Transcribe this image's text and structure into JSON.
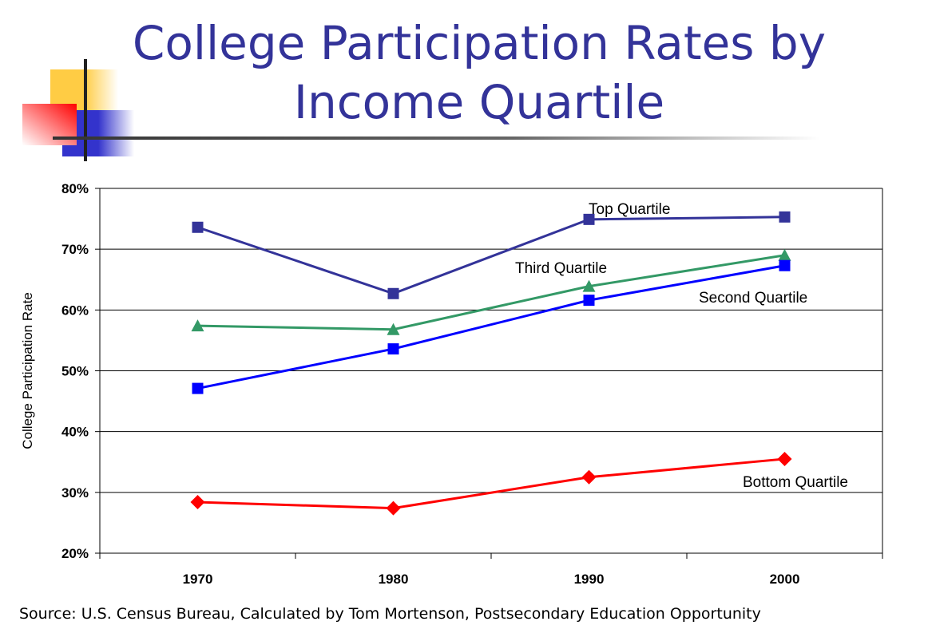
{
  "title_line1": "College Participation Rates by",
  "title_line2": "Income Quartile",
  "source": "Source: U.S. Census Bureau, Calculated by Tom Mortenson, Postsecondary Education Opportunity",
  "chart_data": {
    "type": "line",
    "title": "College Participation Rates by Income Quartile",
    "xlabel": "",
    "ylabel": "College Participation Rate",
    "categories": [
      "1970",
      "1980",
      "1990",
      "2000"
    ],
    "ylim": [
      20,
      80
    ],
    "yticks": [
      "20%",
      "30%",
      "40%",
      "50%",
      "60%",
      "70%",
      "80%"
    ],
    "grid": true,
    "series": [
      {
        "name": "Top Quartile",
        "color": "#333399",
        "marker": "square",
        "values": [
          73.6,
          62.7,
          74.9,
          75.3
        ]
      },
      {
        "name": "Third Quartile",
        "color": "#339966",
        "marker": "triangle",
        "values": [
          57.4,
          56.8,
          63.9,
          69.0
        ]
      },
      {
        "name": "Second Quartile",
        "color": "#0000ff",
        "marker": "square",
        "values": [
          47.1,
          53.6,
          61.6,
          67.3
        ]
      },
      {
        "name": "Bottom Quartile",
        "color": "#ff0000",
        "marker": "diamond",
        "values": [
          28.4,
          27.4,
          32.5,
          35.5
        ]
      }
    ]
  }
}
